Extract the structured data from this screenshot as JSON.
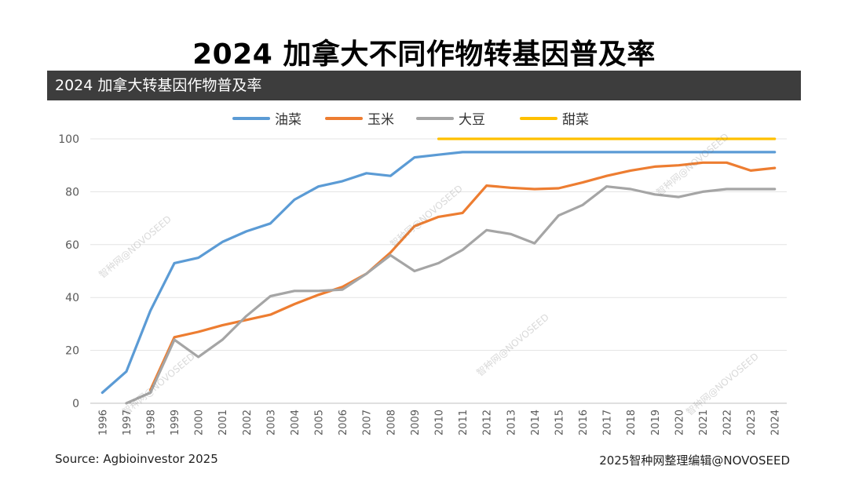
{
  "page_title": "2024 加拿大不同作物转基因普及率",
  "banner_title": "2024 加拿大转基因作物普及率",
  "source": "Source: Agbioinvestor 2025",
  "credit": "2025智种网整理编辑@NOVOSEED",
  "watermark": "智种网@NOVOSEED",
  "chart_data": {
    "type": "line",
    "x": [
      1996,
      1997,
      1998,
      1999,
      2000,
      2001,
      2002,
      2003,
      2004,
      2005,
      2006,
      2007,
      2008,
      2009,
      2010,
      2011,
      2012,
      2013,
      2014,
      2015,
      2016,
      2017,
      2018,
      2019,
      2020,
      2021,
      2022,
      2023,
      2024
    ],
    "ylim": [
      0,
      100
    ],
    "yticks": [
      0,
      20,
      40,
      60,
      80,
      100
    ],
    "grid": true,
    "legend_position": "top",
    "series": [
      {
        "name": "油菜",
        "color": "#5b9bd5",
        "values": [
          4,
          12,
          35,
          53,
          55,
          61,
          65,
          68,
          77,
          82,
          84,
          87,
          86,
          93,
          94,
          95,
          95,
          95,
          95,
          95,
          95,
          95,
          95,
          95,
          95,
          95,
          95,
          95,
          95
        ]
      },
      {
        "name": "玉米",
        "color": "#ed7d31",
        "values": [
          null,
          null,
          5,
          25,
          27,
          29.5,
          31.5,
          33.5,
          37.5,
          41,
          44,
          49,
          57,
          67,
          70.5,
          72,
          82.3,
          81.5,
          81,
          81.3,
          83.5,
          86,
          88,
          89.5,
          90,
          91,
          91,
          88,
          89
        ]
      },
      {
        "name": "大豆",
        "color": "#a5a5a5",
        "values": [
          null,
          0,
          4,
          24,
          17.5,
          24,
          33,
          40.5,
          42.5,
          42.5,
          43,
          49,
          56,
          50,
          53,
          58,
          65.5,
          64,
          60.5,
          71,
          75,
          82,
          81,
          79,
          78,
          80,
          81,
          81,
          81
        ]
      },
      {
        "name": "甜菜",
        "color": "#ffc000",
        "values": [
          null,
          null,
          null,
          null,
          null,
          null,
          null,
          null,
          null,
          null,
          null,
          null,
          null,
          null,
          100,
          100,
          100,
          100,
          100,
          100,
          100,
          100,
          100,
          100,
          100,
          100,
          100,
          100,
          100
        ]
      }
    ]
  }
}
